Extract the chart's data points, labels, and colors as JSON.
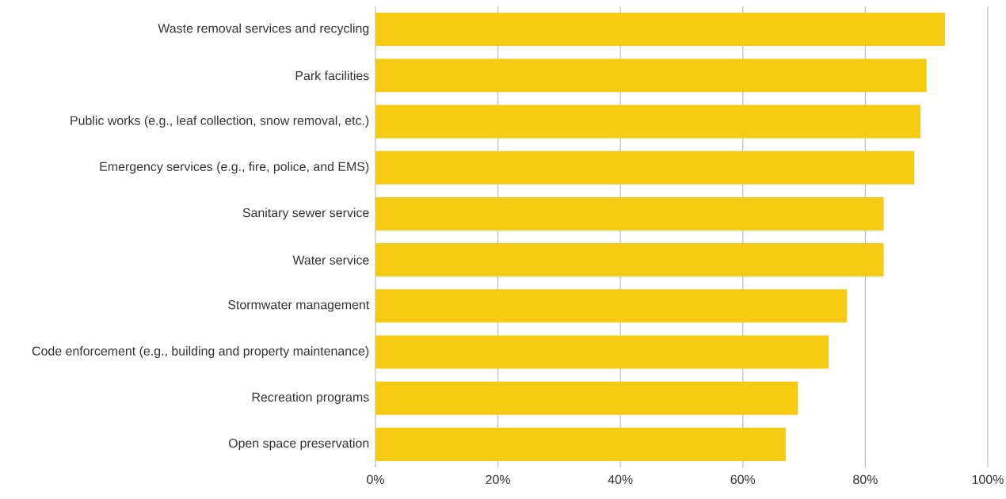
{
  "chart_data": {
    "type": "bar",
    "orientation": "horizontal",
    "categories": [
      "Waste removal services and recycling",
      "Park facilities",
      "Public works (e.g., leaf collection, snow removal, etc.)",
      "Emergency services (e.g., fire, police, and EMS)",
      "Sanitary sewer service",
      "Water service",
      "Stormwater management",
      "Code enforcement (e.g., building and property maintenance)",
      "Recreation programs",
      "Open space preservation"
    ],
    "values": [
      93,
      90,
      89,
      88,
      83,
      83,
      77,
      74,
      69,
      67
    ],
    "color": "#f5cb14",
    "xlim": [
      0,
      100
    ],
    "xticks": [
      {
        "value": 0,
        "label": "0%"
      },
      {
        "value": 20,
        "label": "20%"
      },
      {
        "value": 40,
        "label": "40%"
      },
      {
        "value": 60,
        "label": "60%"
      },
      {
        "value": 80,
        "label": "80%"
      },
      {
        "value": 100,
        "label": "100%"
      }
    ],
    "grid": "x"
  }
}
